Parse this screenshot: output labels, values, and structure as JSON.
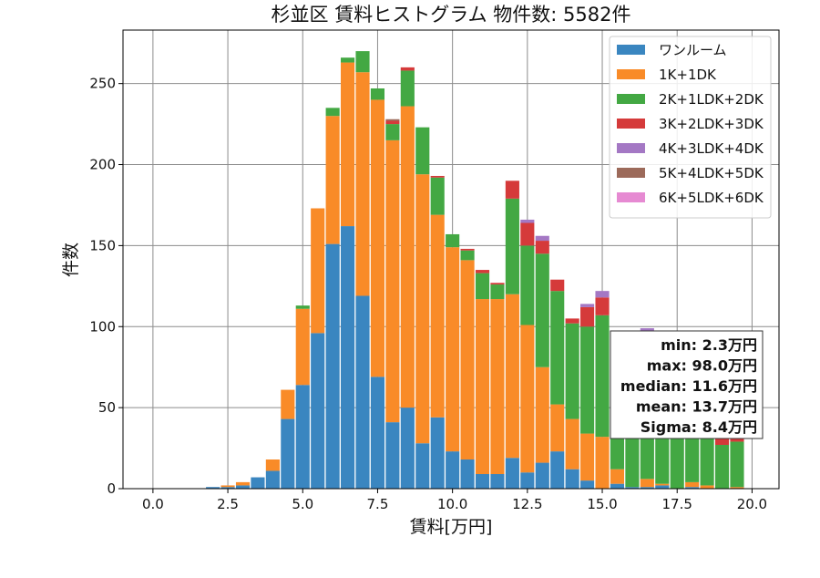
{
  "chart_data": {
    "type": "bar",
    "stacked": true,
    "title": "杉並区 賃料ヒストグラム  物件数: 5582件",
    "xlabel": "賃料[万円]",
    "ylabel": "件数",
    "xlim": [
      -1.0,
      20.9
    ],
    "ylim": [
      0,
      283
    ],
    "grid": true,
    "legend_position": "top-right",
    "bin_width": 0.5,
    "x_ticks": [
      0.0,
      2.5,
      5.0,
      7.5,
      10.0,
      12.5,
      15.0,
      17.5,
      20.0
    ],
    "x_tick_labels": [
      "0.0",
      "2.5",
      "5.0",
      "7.5",
      "10.0",
      "12.5",
      "15.0",
      "17.5",
      "20.0"
    ],
    "y_ticks": [
      0,
      50,
      100,
      150,
      200,
      250
    ],
    "y_tick_labels": [
      "0",
      "50",
      "100",
      "150",
      "200",
      "250"
    ],
    "x": [
      2.0,
      2.5,
      3.0,
      3.5,
      4.0,
      4.5,
      5.0,
      5.5,
      6.0,
      6.5,
      7.0,
      7.5,
      8.0,
      8.5,
      9.0,
      9.5,
      10.0,
      10.5,
      11.0,
      11.5,
      12.0,
      12.5,
      13.0,
      13.5,
      14.0,
      14.5,
      15.0,
      15.5,
      16.0,
      16.5,
      17.0,
      17.5,
      18.0,
      18.5,
      19.0,
      19.5
    ],
    "series": [
      {
        "name": "ワンルーム",
        "color": "#3a86c0",
        "values": [
          1,
          1,
          2,
          7,
          11,
          43,
          64,
          96,
          151,
          162,
          119,
          69,
          41,
          50,
          28,
          44,
          23,
          18,
          9,
          9,
          19,
          10,
          16,
          23,
          12,
          5,
          0,
          3,
          1,
          1,
          2,
          0,
          1,
          0,
          0,
          0
        ]
      },
      {
        "name": "1K+1DK",
        "color": "#f98b28",
        "values": [
          0,
          1,
          2,
          0,
          7,
          18,
          47,
          77,
          79,
          101,
          138,
          171,
          174,
          186,
          166,
          125,
          126,
          123,
          108,
          108,
          101,
          91,
          59,
          29,
          31,
          29,
          32,
          9,
          0,
          5,
          1,
          0,
          3,
          2,
          0,
          1
        ]
      },
      {
        "name": "2K+1LDK+2DK",
        "color": "#43a843",
        "values": [
          0,
          0,
          0,
          0,
          0,
          0,
          2,
          0,
          5,
          3,
          13,
          7,
          10,
          22,
          29,
          23,
          8,
          6,
          16,
          9,
          59,
          49,
          70,
          70,
          59,
          66,
          75,
          75,
          85,
          80,
          73,
          80,
          83,
          79,
          27,
          28
        ]
      },
      {
        "name": "3K+2LDK+3DK",
        "color": "#d53a3a",
        "values": [
          0,
          0,
          0,
          0,
          0,
          0,
          0,
          0,
          0,
          0,
          0,
          0,
          2,
          2,
          0,
          1,
          0,
          1,
          2,
          1,
          11,
          14,
          8,
          7,
          3,
          12,
          11,
          6,
          5,
          9,
          7,
          5,
          7,
          8,
          8,
          4
        ]
      },
      {
        "name": "4K+3LDK+4DK",
        "color": "#a478c4",
        "values": [
          0,
          0,
          0,
          0,
          0,
          0,
          0,
          0,
          0,
          0,
          0,
          0,
          0,
          0,
          0,
          0,
          0,
          0,
          0,
          0,
          0,
          2,
          3,
          0,
          0,
          2,
          4,
          0,
          0,
          4,
          0,
          0,
          0,
          0,
          0,
          0
        ]
      },
      {
        "name": "5K+4LDK+5DK",
        "color": "#9c6a5a",
        "values": [
          0,
          0,
          0,
          0,
          0,
          0,
          0,
          0,
          0,
          0,
          0,
          0,
          1,
          0,
          0,
          0,
          0,
          0,
          0,
          0,
          0,
          0,
          0,
          0,
          0,
          0,
          0,
          0,
          0,
          0,
          0,
          0,
          0,
          0,
          0,
          0
        ]
      },
      {
        "name": "6K+5LDK+6DK",
        "color": "#e68ad2",
        "values": [
          0,
          0,
          0,
          0,
          0,
          0,
          0,
          0,
          0,
          0,
          0,
          0,
          0,
          0,
          0,
          0,
          0,
          0,
          0,
          0,
          0,
          0,
          0,
          0,
          0,
          0,
          0,
          0,
          0,
          0,
          0,
          0,
          0,
          0,
          0,
          0
        ]
      }
    ],
    "stats_box": [
      "min: 2.3万円",
      "max: 98.0万円",
      "median: 11.6万円",
      "mean: 13.7万円",
      "Sigma: 8.4万円"
    ]
  }
}
